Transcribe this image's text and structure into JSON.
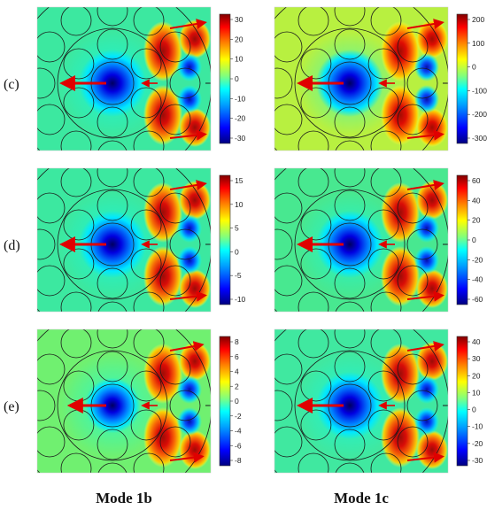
{
  "figure": {
    "row_labels": [
      "(c)",
      "(d)",
      "(e)"
    ],
    "column_labels": [
      "Mode 1b",
      "Mode 1c"
    ],
    "colormap": [
      "#000080",
      "#0000ff",
      "#00a0ff",
      "#00ffff",
      "#7fff7f",
      "#ffff00",
      "#ff8000",
      "#ff0000",
      "#800000"
    ],
    "colorbars": [
      {
        "id": "c-1b",
        "ticks": [
          "30",
          "20",
          "10",
          "0",
          "-10",
          "-20",
          "-30"
        ]
      },
      {
        "id": "c-1c",
        "ticks": [
          "200",
          "100",
          "0",
          "-100",
          "-200",
          "-300"
        ]
      },
      {
        "id": "d-1b",
        "ticks": [
          "15",
          "10",
          "5",
          "0",
          "-5",
          "-10"
        ]
      },
      {
        "id": "d-1c",
        "ticks": [
          "60",
          "40",
          "20",
          "0",
          "-20",
          "-40",
          "-60"
        ]
      },
      {
        "id": "e-1b",
        "ticks": [
          "8",
          "6",
          "4",
          "2",
          "0",
          "-2",
          "-4",
          "-6",
          "-8"
        ]
      },
      {
        "id": "e-1c",
        "ticks": [
          "40",
          "30",
          "20",
          "10",
          "0",
          "-10",
          "-20",
          "-30"
        ]
      }
    ]
  }
}
